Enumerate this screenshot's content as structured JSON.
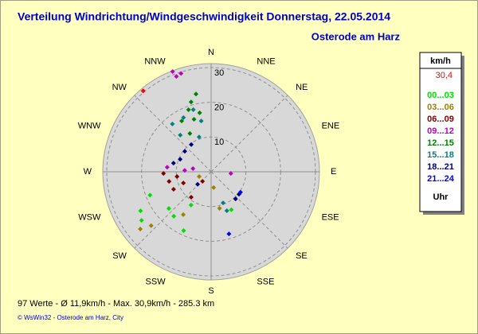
{
  "chart_data": {
    "type": "polar-scatter",
    "title": "Verteilung Windrichtung/Windgeschwindigkeit  Donnerstag, 22.05.2014",
    "subtitle": "Osterode am Harz",
    "directions": [
      "N",
      "NNE",
      "NE",
      "ENE",
      "E",
      "ESE",
      "SE",
      "SSE",
      "S",
      "SSW",
      "SW",
      "WSW",
      "W",
      "WNW",
      "NW",
      "NNW"
    ],
    "rlim": [
      0,
      30
    ],
    "rticks": [
      10,
      20,
      30
    ],
    "legend_title": "km/h",
    "legend_unit": "Uhr",
    "current": {
      "name": "30,4",
      "color": "#ff0000",
      "direction": 320,
      "speed": 30.4
    },
    "series": [
      {
        "name": "00...03",
        "color": "#00e000",
        "direction": [
          241,
          235,
          249,
          229,
          220,
          211,
          152,
          205
        ],
        "values": [
          23.2,
          24.4,
          18.8,
          16.1,
          16.7,
          11.2,
          12.4,
          18.7
        ]
      },
      {
        "name": "03...06",
        "color": "#a08000",
        "direction": [
          231,
          228,
          213,
          171,
          167,
          248
        ],
        "values": [
          26.2,
          23.2,
          14.7,
          4.6,
          10.8,
          3.7
        ]
      },
      {
        "name": "06...09",
        "color": "#800000",
        "direction": [
          268,
          257,
          245,
          248,
          218,
          222,
          262
        ],
        "values": [
          13.7,
          12.4,
          11.9,
          8.6,
          9.3,
          3.7,
          9.9
        ]
      },
      {
        "name": "09...12",
        "color": "#c000c0",
        "direction": [
          339,
          343,
          340,
          95,
          276,
          273,
          280
        ],
        "values": [
          30.9,
          29.6,
          29.2,
          5.7,
          12.7,
          7.6,
          5.3
        ]
      },
      {
        "name": "12...15",
        "color": "#008000",
        "direction": [
          349,
          344,
          340,
          342,
          349,
          330,
          331
        ],
        "values": [
          22.8,
          20.9,
          19.0,
          15.9,
          17.3,
          16.9,
          12.6
        ]
      },
      {
        "name": "15...18",
        "color": "#008080",
        "direction": [
          344,
          333,
          321,
          349,
          341,
          320,
          159,
          158
        ],
        "values": [
          18.6,
          17.5,
          17.7,
          14.9,
          10.6,
          13.8,
          9.6,
          12.1
        ]
      },
      {
        "name": "18...21",
        "color": "#000080",
        "direction": [
          308,
          324,
          283,
          292,
          227,
          129,
          138
        ],
        "values": [
          9.6,
          9.7,
          11.1,
          9.6,
          5.3,
          10.3,
          10.5
        ]
      },
      {
        "name": "21...24",
        "color": "#0000ff",
        "direction": [
          125,
          164
        ],
        "values": [
          10.3,
          18.6
        ]
      }
    ],
    "footer": "97 Werte  -  Ø 11,9km/h  -  Max. 30,9km/h  -  285.3 km",
    "credit": "© WsWin32  -  Osterode am Harz, City"
  }
}
